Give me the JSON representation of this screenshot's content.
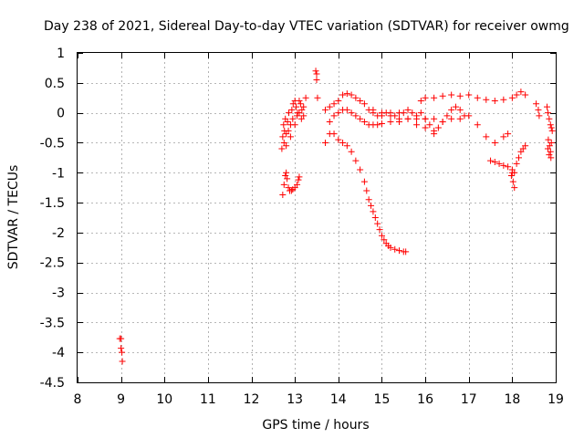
{
  "chart_data": {
    "type": "scatter",
    "title": "Day 238 of 2021, Sidereal Day-to-day VTEC variation (SDTVAR) for receiver owmg",
    "xlabel": "GPS time / hours",
    "ylabel": "SDTVAR / TECUs",
    "xlim": [
      8,
      19
    ],
    "ylim": [
      -4.5,
      1
    ],
    "grid": true,
    "marker": "+",
    "color": "#ff0000",
    "x_ticks": [
      "8",
      "9",
      "10",
      "11",
      "12",
      "13",
      "14",
      "15",
      "16",
      "17",
      "18",
      "19"
    ],
    "y_ticks": [
      "1",
      "0.5",
      "0",
      "-0.5",
      "-1",
      "-1.5",
      "-2",
      "-2.5",
      "-3",
      "-3.5",
      "-4",
      "-4.5"
    ],
    "series": [
      {
        "name": "isolated early points",
        "x": [
          8.97,
          9.0,
          9.0,
          9.02,
          9.03
        ],
        "y": [
          -3.77,
          -3.77,
          -3.93,
          -4.0,
          -4.15
        ]
      },
      {
        "name": "low arc near 13h",
        "x": [
          12.72,
          12.75,
          12.78,
          12.8,
          12.82,
          12.85,
          12.88,
          12.92,
          12.95,
          13.0,
          13.05,
          13.08,
          13.1
        ],
        "y": [
          -1.37,
          -1.2,
          -1.05,
          -1.0,
          -1.1,
          -1.25,
          -1.3,
          -1.3,
          -1.28,
          -1.25,
          -1.2,
          -1.12,
          -1.07
        ]
      },
      {
        "name": "cluster 12.7-13.3h",
        "x": [
          12.7,
          12.72,
          12.74,
          12.76,
          12.78,
          12.8,
          12.83,
          12.86,
          12.9,
          12.93,
          12.96,
          13.0,
          13.03,
          13.06,
          13.1,
          13.13,
          13.16,
          13.2,
          13.25,
          12.75,
          12.8,
          12.85,
          12.9,
          12.95,
          13.0,
          13.05,
          13.1,
          13.15,
          13.2
        ],
        "y": [
          -0.6,
          -0.4,
          -0.2,
          -0.3,
          -0.1,
          -0.35,
          -0.15,
          0.0,
          -0.2,
          0.05,
          0.15,
          0.2,
          0.1,
          0.0,
          0.2,
          0.15,
          0.05,
          0.1,
          0.25,
          -0.5,
          -0.55,
          -0.3,
          -0.4,
          -0.1,
          -0.2,
          -0.05,
          0.0,
          -0.1,
          -0.05
        ]
      },
      {
        "name": "high points near 13.5h",
        "x": [
          13.48,
          13.5,
          13.5,
          13.52
        ],
        "y": [
          0.7,
          0.65,
          0.55,
          0.25
        ]
      },
      {
        "name": "descending arc 13.7-15.5h",
        "x": [
          13.7,
          13.8,
          13.9,
          14.0,
          14.1,
          14.2,
          14.3,
          14.4,
          14.5,
          14.6,
          14.65,
          14.7,
          14.75,
          14.8,
          14.85,
          14.9,
          14.95,
          15.0,
          15.05,
          15.1,
          15.15,
          15.2,
          15.3,
          15.4,
          15.5,
          15.55
        ],
        "y": [
          -0.5,
          -0.35,
          -0.35,
          -0.45,
          -0.5,
          -0.55,
          -0.65,
          -0.8,
          -0.95,
          -1.15,
          -1.3,
          -1.45,
          -1.55,
          -1.65,
          -1.75,
          -1.85,
          -1.95,
          -2.05,
          -2.12,
          -2.18,
          -2.22,
          -2.25,
          -2.28,
          -2.3,
          -2.32,
          -2.32
        ]
      },
      {
        "name": "upper band 13.7-16.2h",
        "x": [
          13.7,
          13.8,
          13.9,
          14.0,
          14.1,
          14.2,
          14.3,
          14.4,
          14.5,
          14.6,
          14.7,
          14.8,
          14.9,
          15.0,
          15.1,
          15.2,
          15.3,
          15.4,
          15.5,
          15.6,
          15.7,
          15.8,
          15.9,
          16.0,
          16.1,
          16.2
        ],
        "y": [
          0.05,
          0.1,
          0.15,
          0.2,
          0.3,
          0.32,
          0.3,
          0.25,
          0.2,
          0.15,
          0.05,
          0.0,
          -0.05,
          -0.05,
          0.0,
          0.0,
          -0.05,
          0.0,
          0.0,
          0.05,
          0.0,
          -0.05,
          0.0,
          -0.1,
          -0.2,
          -0.35
        ]
      },
      {
        "name": "lower band 13.7-17.9h",
        "x": [
          13.8,
          13.9,
          14.0,
          14.1,
          14.2,
          14.3,
          14.4,
          14.5,
          14.6,
          14.7,
          14.8,
          14.9,
          15.0,
          15.2,
          15.4,
          15.6,
          15.8,
          16.0,
          16.2,
          16.4,
          16.6,
          16.8,
          17.0,
          17.2,
          17.4,
          17.6,
          17.8,
          17.9
        ],
        "y": [
          -0.15,
          -0.05,
          0.0,
          0.05,
          0.05,
          0.0,
          -0.05,
          -0.1,
          -0.15,
          -0.2,
          -0.2,
          -0.2,
          -0.18,
          -0.15,
          -0.15,
          -0.1,
          -0.1,
          -0.1,
          -0.1,
          -0.15,
          -0.1,
          -0.1,
          -0.05,
          -0.2,
          -0.4,
          -0.5,
          -0.4,
          -0.35
        ]
      },
      {
        "name": "middle band 15-16.8h",
        "x": [
          14.8,
          15.0,
          15.2,
          15.4,
          15.6,
          15.8,
          16.0,
          16.2,
          16.3,
          16.4,
          16.5,
          16.6,
          16.7,
          16.8,
          16.9
        ],
        "y": [
          0.05,
          0.0,
          -0.05,
          -0.1,
          -0.1,
          -0.2,
          -0.25,
          -0.3,
          -0.25,
          -0.15,
          -0.05,
          0.05,
          0.1,
          0.05,
          -0.05
        ]
      },
      {
        "name": "top band 16.0-18.3h",
        "x": [
          15.9,
          16.0,
          16.2,
          16.4,
          16.6,
          16.8,
          17.0,
          17.2,
          17.4,
          17.6,
          17.8,
          18.0,
          18.1,
          18.2,
          18.3
        ],
        "y": [
          0.2,
          0.25,
          0.25,
          0.28,
          0.3,
          0.28,
          0.3,
          0.25,
          0.22,
          0.2,
          0.22,
          0.25,
          0.3,
          0.35,
          0.3
        ]
      },
      {
        "name": "arc 17.5-18.3h",
        "x": [
          17.5,
          17.6,
          17.7,
          17.8,
          17.9,
          18.0,
          18.05,
          18.1,
          18.15,
          18.2,
          18.25,
          18.3
        ],
        "y": [
          -0.8,
          -0.82,
          -0.85,
          -0.88,
          -0.9,
          -0.95,
          -1.0,
          -0.85,
          -0.75,
          -0.65,
          -0.6,
          -0.55
        ]
      },
      {
        "name": "isolated points near 18h",
        "x": [
          17.98,
          18.0,
          18.02,
          18.05
        ],
        "y": [
          -1.05,
          -1.0,
          -1.15,
          -1.25
        ]
      },
      {
        "name": "right cluster 18.5-18.9h",
        "x": [
          18.55,
          18.6,
          18.62,
          18.8,
          18.82,
          18.85,
          18.88,
          18.9,
          18.92,
          18.82,
          18.85,
          18.88,
          18.9,
          18.83,
          18.86,
          18.89
        ],
        "y": [
          0.15,
          0.05,
          -0.05,
          0.1,
          0.0,
          -0.1,
          -0.2,
          -0.25,
          -0.3,
          -0.6,
          -0.7,
          -0.65,
          -0.5,
          -0.45,
          -0.55,
          -0.75
        ]
      }
    ]
  }
}
